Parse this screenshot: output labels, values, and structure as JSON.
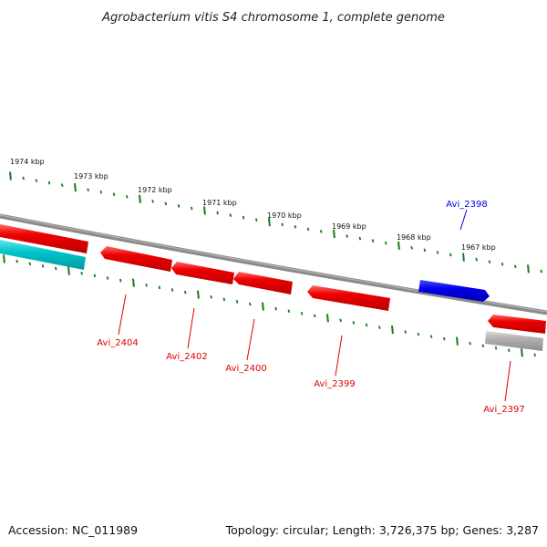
{
  "title": "Agrobacterium vitis S4 chromosome 1, complete genome",
  "footer": {
    "accession": "Accession: NC_011989",
    "summary": "Topology: circular; Length: 3,726,375 bp; Genes: 3,287"
  },
  "scale_labels": [
    "1974 kbp",
    "1973 kbp",
    "1972 kbp",
    "1971 kbp",
    "1970 kbp",
    "1969 kbp",
    "1968 kbp",
    "1967 kbp"
  ],
  "genes": [
    {
      "name": "Avi_2404",
      "strand": "reverse",
      "color": "#dd0000"
    },
    {
      "name": "Avi_2402",
      "strand": "reverse",
      "color": "#dd0000"
    },
    {
      "name": "Avi_2400",
      "strand": "reverse",
      "color": "#dd0000"
    },
    {
      "name": "Avi_2399",
      "strand": "reverse",
      "color": "#dd0000"
    },
    {
      "name": "Avi_2398",
      "strand": "forward",
      "color": "#0000dd"
    },
    {
      "name": "Avi_2397",
      "strand": "reverse",
      "color": "#dd0000"
    }
  ],
  "colors": {
    "backbone": "#808080",
    "ticks": "#1a7a1a",
    "reverse_gene": "#e00000",
    "forward_gene": "#0000e0",
    "rna_gene": "#00c0c8",
    "pseudo_gene": "#a8a8a8"
  }
}
